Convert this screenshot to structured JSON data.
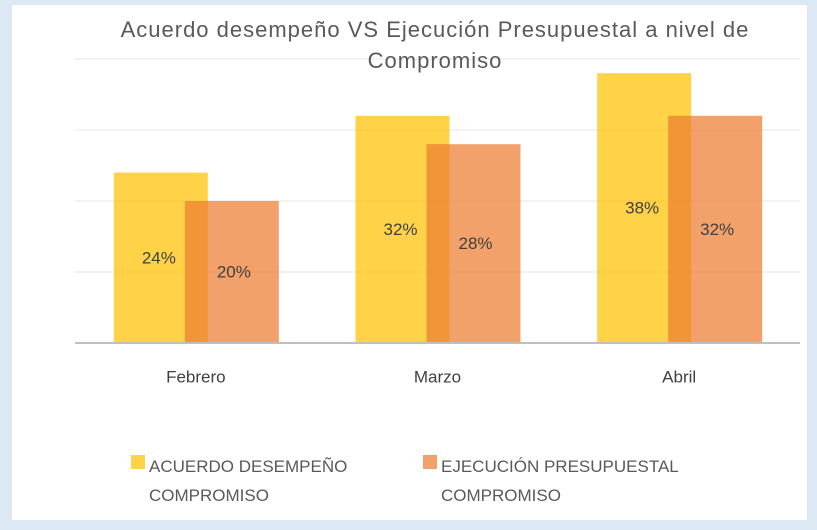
{
  "chart_data": {
    "type": "bar",
    "title": "Acuerdo desempeño VS Ejecución Presupuestal a nivel de Compromiso",
    "categories": [
      "Febrero",
      "Marzo",
      "Abril"
    ],
    "series": [
      {
        "name": "ACUERDO DESEMPEÑO COMPROMISO",
        "color": "#ffc000",
        "values": [
          24,
          32,
          38
        ],
        "value_labels": [
          "24%",
          "32%",
          "38%"
        ]
      },
      {
        "name": "EJECUCIÓN PRESUPUESTAL COMPROMISO",
        "color": "#ed7d31",
        "values": [
          20,
          28,
          32
        ],
        "value_labels": [
          "20%",
          "28%",
          "32%"
        ]
      }
    ],
    "ylim": [
      0,
      40
    ],
    "yticks": [
      0,
      10,
      20,
      30,
      40
    ],
    "grid": true,
    "legend": "bottom"
  }
}
